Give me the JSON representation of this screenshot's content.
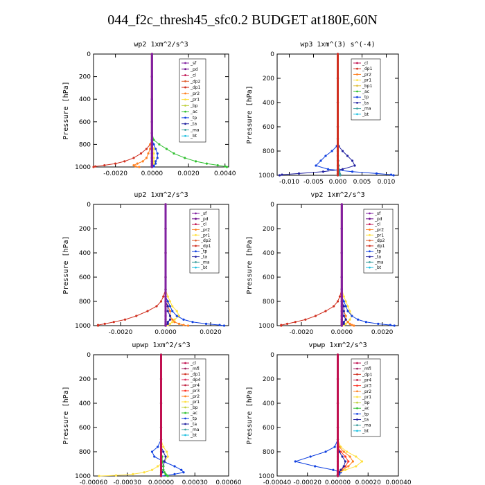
{
  "page_title": "044_f2c_thresh45_sfc0.2  BUDGET at180E,60N",
  "colors": {
    "_sf": "#8020a0",
    "_pd": "#6a0a8a",
    "_cl": "#c01050",
    "_dp2": "#e06030",
    "_dp1": "#d03020",
    "_pr2": "#ff8020",
    "_pr1": "#ffe040",
    "_bp": "#c0d040",
    "_ac": "#30c030",
    "_tp": "#1040e0",
    "_ta": "#2020a0",
    "_ma": "#40a0a0",
    "_bt": "#20c0e0",
    "_mfl": "#a02060",
    "_dp4": "#e03060",
    "_pr4": "#c02040",
    "_pr3": "#ff3020",
    "_bp1": "#e0c040"
  },
  "chart_data": [
    {
      "type": "line",
      "title": "wp2  1xm^2/s^3",
      "ylabel": "Pressure  [hPa]",
      "xlim": [
        -0.0032,
        0.0042
      ],
      "ylim": [
        1000,
        0
      ],
      "xticks": [
        -0.002,
        0.0,
        0.002,
        0.004
      ],
      "xtick_labels": [
        "-0.0020",
        "0.0000",
        "0.0020",
        "0.0040"
      ],
      "yticks": [
        0,
        200,
        400,
        600,
        800,
        1000
      ],
      "legend": [
        "_sf",
        "_pd",
        "_cl",
        "_dp2",
        "_dp1",
        "_pr2",
        "_pr1",
        "_bp",
        "_ac",
        "_tp",
        "_ta",
        "_ma",
        "_bt"
      ],
      "pressure": [
        0,
        200,
        400,
        600,
        700,
        760,
        800,
        840,
        880,
        920,
        950,
        970,
        985,
        995,
        1000
      ],
      "series": [
        {
          "name": "_dp1",
          "values": [
            0,
            0,
            0,
            0,
            0,
            0,
            -0.0001,
            -0.0003,
            -0.0006,
            -0.001,
            -0.0015,
            -0.002,
            -0.0026,
            -0.0031,
            -0.0032
          ]
        },
        {
          "name": "_ac",
          "values": [
            0,
            0,
            0,
            0,
            0,
            0.0001,
            0.0004,
            0.0008,
            0.0012,
            0.0018,
            0.0024,
            0.003,
            0.0036,
            0.004,
            0.0041
          ]
        },
        {
          "name": "_tp",
          "values": [
            0,
            0,
            0,
            0,
            0,
            0,
            0.0001,
            0.0002,
            0.0003,
            0.0003,
            0.0002,
            0.0002,
            0.0001,
            0.0001,
            0
          ]
        },
        {
          "name": "_pr1",
          "values": [
            0,
            0,
            0,
            0,
            0,
            0,
            0,
            0.0001,
            0.0001,
            0.0001,
            0.0001,
            0.0001,
            0,
            0,
            0
          ]
        },
        {
          "name": "_pr2",
          "values": [
            0,
            0,
            0,
            0,
            0,
            0,
            -0.0001,
            -0.0001,
            -0.0002,
            -0.0003,
            -0.0005,
            -0.0008,
            -0.001,
            -0.0009,
            -0.0007
          ]
        },
        {
          "name": "_cl",
          "values": [
            0,
            0,
            0,
            0,
            0,
            0,
            0,
            0,
            0,
            0,
            0,
            0,
            0,
            0,
            0
          ]
        },
        {
          "name": "_sf",
          "values": [
            0,
            0,
            0,
            0,
            0,
            0,
            0,
            0,
            0,
            0,
            0,
            0,
            0,
            0,
            0
          ]
        }
      ]
    },
    {
      "type": "line",
      "title": "wp3  1xm^(3) s^(-4)",
      "ylabel": "Pressure  [hPa]",
      "xlim": [
        -0.0125,
        0.0125
      ],
      "ylim": [
        1000,
        0
      ],
      "xticks": [
        -0.01,
        -0.005,
        0.0,
        0.005,
        0.01
      ],
      "xtick_labels": [
        "-0.010",
        "-0.005",
        "0.000",
        "0.005",
        "0.010"
      ],
      "yticks": [
        0,
        200,
        400,
        600,
        800,
        1000
      ],
      "legend": [
        "_cl",
        "_dp1",
        "_pr2",
        "_pr1",
        "_bp1",
        "_ac",
        "_tp",
        "_ta",
        "_ma",
        "_bt"
      ],
      "pressure": [
        0,
        200,
        400,
        600,
        700,
        760,
        800,
        840,
        880,
        920,
        950,
        970,
        985,
        995,
        1000
      ],
      "series": [
        {
          "name": "_ta",
          "values": [
            0,
            0,
            0,
            0,
            0,
            0.0002,
            0.001,
            0.002,
            0.003,
            0.0035,
            0.001,
            -0.003,
            -0.008,
            -0.0115,
            -0.012
          ]
        },
        {
          "name": "_tp",
          "values": [
            0,
            0,
            0,
            0,
            0,
            -0.0002,
            -0.0012,
            -0.0025,
            -0.0035,
            -0.0045,
            -0.002,
            0.003,
            0.008,
            0.011,
            0.0115
          ]
        },
        {
          "name": "_ma",
          "values": [
            0,
            0,
            0,
            0,
            0,
            0,
            0,
            0,
            0.0001,
            0.0002,
            0.0002,
            0.0003,
            0.0004,
            0.0005,
            0.0005
          ]
        },
        {
          "name": "_cl",
          "values": [
            0,
            0,
            0,
            0,
            0,
            0,
            0,
            0,
            0,
            0,
            0,
            0,
            0,
            0,
            0
          ]
        },
        {
          "name": "_dp1",
          "values": [
            0,
            0,
            0,
            0,
            0,
            0,
            0,
            0,
            0,
            0,
            0,
            0,
            0,
            0,
            0
          ]
        }
      ]
    },
    {
      "type": "line",
      "title": "up2  1xm^2/s^3",
      "ylabel": "Pressure  [hPa]",
      "xlim": [
        -0.0032,
        0.0028
      ],
      "ylim": [
        1000,
        0
      ],
      "xticks": [
        -0.002,
        0.0,
        0.002
      ],
      "xtick_labels": [
        "-0.0020",
        "0.0000",
        "0.0020"
      ],
      "yticks": [
        0,
        200,
        400,
        600,
        800,
        1000
      ],
      "legend": [
        "_sf",
        "_pd",
        "_cl",
        "_pr2",
        "_pr1",
        "_dp2",
        "_dp1",
        "_tp",
        "_ta",
        "_ma",
        "_bt"
      ],
      "pressure": [
        0,
        200,
        400,
        600,
        700,
        760,
        800,
        840,
        880,
        920,
        950,
        970,
        985,
        995,
        1000
      ],
      "series": [
        {
          "name": "_dp1",
          "values": [
            0,
            0,
            0,
            0,
            0,
            -0.0001,
            -0.0002,
            -0.0004,
            -0.0008,
            -0.0013,
            -0.0018,
            -0.0023,
            -0.0027,
            -0.003,
            -0.003
          ]
        },
        {
          "name": "_pr1",
          "values": [
            0,
            0,
            0,
            0,
            0,
            0.0001,
            0.0002,
            0.0003,
            0.0005,
            0.0006,
            0.0004,
            0.0003,
            0.0002,
            0.0001,
            0
          ]
        },
        {
          "name": "_pr2",
          "values": [
            0,
            0,
            0,
            0,
            0,
            0,
            0.0001,
            0.0001,
            0.0002,
            0.0002,
            0.0003,
            0.0004,
            0.0006,
            0.0008,
            0.001
          ]
        },
        {
          "name": "_tp",
          "values": [
            0,
            0,
            0,
            0,
            0,
            0,
            0.0001,
            0.0002,
            0.0003,
            0.0005,
            0.0008,
            0.0012,
            0.0018,
            0.0024,
            0.0026
          ]
        },
        {
          "name": "_ta",
          "values": [
            0,
            0,
            0,
            0,
            0,
            0,
            0,
            0.0001,
            0.0001,
            0.0002,
            0.0002,
            0.0001,
            0.0001,
            0,
            0
          ]
        },
        {
          "name": "_cl",
          "values": [
            0,
            0,
            0,
            0,
            0,
            0,
            0,
            0,
            0,
            0,
            0,
            0,
            0,
            0,
            0
          ]
        },
        {
          "name": "_sf",
          "values": [
            0,
            0,
            0,
            0,
            0,
            0,
            0,
            0,
            0,
            0,
            0,
            0,
            0,
            0,
            0
          ]
        }
      ]
    },
    {
      "type": "line",
      "title": "vp2  1xm^2/s^3",
      "ylabel": "Pressure  [hPa]",
      "xlim": [
        -0.0032,
        0.0028
      ],
      "ylim": [
        1000,
        0
      ],
      "xticks": [
        -0.002,
        0.0,
        0.002
      ],
      "xtick_labels": [
        "-0.0020",
        "0.0000",
        "0.0020"
      ],
      "yticks": [
        0,
        200,
        400,
        600,
        800,
        1000
      ],
      "legend": [
        "_sf",
        "_pd",
        "_cl",
        "_pr2",
        "_pr1",
        "_dp2",
        "_dp1",
        "_tp",
        "_ta",
        "_ma",
        "_bt"
      ],
      "pressure": [
        0,
        200,
        400,
        600,
        700,
        760,
        800,
        840,
        880,
        920,
        950,
        970,
        985,
        995,
        1000
      ],
      "series": [
        {
          "name": "_dp1",
          "values": [
            0,
            0,
            0,
            0,
            0,
            -0.0001,
            -0.0002,
            -0.0004,
            -0.0008,
            -0.0013,
            -0.0018,
            -0.0023,
            -0.0027,
            -0.003,
            -0.003
          ]
        },
        {
          "name": "_pr1",
          "values": [
            0,
            0,
            0,
            0,
            0,
            0.0001,
            0.0002,
            0.0003,
            0.0004,
            0.0005,
            0.0004,
            0.0003,
            0.0002,
            0.0001,
            0
          ]
        },
        {
          "name": "_pr2",
          "values": [
            0,
            0,
            0,
            0,
            0,
            0,
            0,
            0.0001,
            0.0001,
            0.0002,
            0.0002,
            0.0003,
            0.0004,
            0.0005,
            0.0006
          ]
        },
        {
          "name": "_tp",
          "values": [
            0,
            0,
            0,
            0,
            0,
            0,
            0.0001,
            0.0002,
            0.0003,
            0.0005,
            0.0008,
            0.0012,
            0.0018,
            0.0024,
            0.0026
          ]
        },
        {
          "name": "_ta",
          "values": [
            0,
            0,
            0,
            0,
            0,
            0,
            0,
            0.0001,
            0.0001,
            0.0001,
            0.0002,
            0.0001,
            0.0001,
            0,
            0
          ]
        },
        {
          "name": "_cl",
          "values": [
            0,
            0,
            0,
            0,
            0,
            0,
            0,
            0,
            0,
            0,
            0,
            0,
            0,
            0,
            0
          ]
        },
        {
          "name": "_sf",
          "values": [
            0,
            0,
            0,
            0,
            0,
            0,
            0,
            0,
            0,
            0,
            0,
            0,
            0,
            0,
            0
          ]
        }
      ]
    },
    {
      "type": "line",
      "title": "upwp  1xm^2/s^3",
      "ylabel": "Pressure  [hPa]",
      "xlim": [
        -0.0006,
        0.0006
      ],
      "ylim": [
        1000,
        0
      ],
      "xticks": [
        -0.0006,
        -0.0003,
        0.0,
        0.0003,
        0.0006
      ],
      "xtick_labels": [
        "-0.00060",
        "-0.00030",
        "0.00000",
        "0.00030",
        "0.00060"
      ],
      "yticks": [
        0,
        200,
        400,
        600,
        800,
        1000
      ],
      "legend": [
        "_cl",
        "_mfl",
        "_dp1",
        "_dp4",
        "_pr4",
        "_pr3",
        "_pr2",
        "_pr1",
        "_bp",
        "_ac",
        "_tp",
        "_ta",
        "_ma",
        "_bt"
      ],
      "pressure": [
        0,
        200,
        400,
        600,
        700,
        760,
        800,
        840,
        880,
        920,
        950,
        970,
        985,
        995,
        1000
      ],
      "series": [
        {
          "name": "_pr1",
          "values": [
            0,
            0,
            0,
            0,
            0,
            2e-05,
            5e-05,
            6e-05,
            3e-05,
            -3e-05,
            -8e-05,
            -0.00015,
            -0.00025,
            -0.0004,
            -0.00055
          ]
        },
        {
          "name": "_tp",
          "values": [
            0,
            0,
            0,
            0,
            0,
            -3e-05,
            -8e-05,
            -6e-05,
            2e-05,
            0.00012,
            0.00018,
            0.0002,
            0.00012,
            5e-05,
            0
          ]
        },
        {
          "name": "_ta",
          "values": [
            0,
            0,
            0,
            0,
            0,
            0,
            2e-05,
            4e-05,
            3e-05,
            2e-05,
            2e-05,
            1e-05,
            0,
            0,
            0
          ]
        },
        {
          "name": "_ac",
          "values": [
            0,
            0,
            0,
            0,
            0,
            0,
            0,
            1e-05,
            1e-05,
            2e-05,
            2e-05,
            3e-05,
            4e-05,
            5e-05,
            6e-05
          ]
        },
        {
          "name": "_cl",
          "values": [
            0,
            0,
            0,
            0,
            0,
            0,
            0,
            0,
            0,
            0,
            0,
            0,
            0,
            0,
            0
          ]
        }
      ]
    },
    {
      "type": "line",
      "title": "vpwp  1xm^2/s^3",
      "ylabel": "Pressure  [hPa]",
      "xlim": [
        -0.0004,
        0.0004
      ],
      "ylim": [
        1000,
        0
      ],
      "xticks": [
        -0.0004,
        -0.0002,
        0.0,
        0.0002,
        0.0004
      ],
      "xtick_labels": [
        "-0.00040",
        "-0.00020",
        "0.00000",
        "0.00020",
        "0.00040"
      ],
      "yticks": [
        0,
        200,
        400,
        600,
        800,
        1000
      ],
      "legend": [
        "_cl",
        "_mfl",
        "_dp1",
        "_pr4",
        "_pr3",
        "_pr2",
        "_pr1",
        "_bp",
        "_ac",
        "_tp",
        "_ta",
        "_ma",
        "_bt"
      ],
      "pressure": [
        0,
        200,
        400,
        600,
        700,
        760,
        800,
        840,
        880,
        920,
        950,
        970,
        985,
        995,
        1000
      ],
      "series": [
        {
          "name": "_tp",
          "values": [
            0,
            0,
            0,
            0,
            0,
            -2e-05,
            -8e-05,
            -0.00018,
            -0.00028,
            -0.00015,
            -3e-05,
            2e-05,
            1e-05,
            0,
            0
          ]
        },
        {
          "name": "_pr1",
          "values": [
            0,
            0,
            0,
            0,
            0,
            2e-05,
            6e-05,
            0.00012,
            0.00016,
            0.00012,
            5e-05,
            1e-05,
            0,
            0,
            0
          ]
        },
        {
          "name": "_pr2",
          "values": [
            0,
            0,
            0,
            0,
            0,
            1e-05,
            4e-05,
            8e-05,
            0.0001,
            7e-05,
            3e-05,
            1e-05,
            0,
            0,
            0
          ]
        },
        {
          "name": "_pr3",
          "values": [
            0,
            0,
            0,
            0,
            0,
            0,
            2e-05,
            5e-05,
            7e-05,
            5e-05,
            2e-05,
            0,
            0,
            0,
            0
          ]
        },
        {
          "name": "_ta",
          "values": [
            0,
            0,
            0,
            0,
            0,
            0,
            1e-05,
            3e-05,
            5e-05,
            4e-05,
            2e-05,
            1e-05,
            0,
            0,
            0
          ]
        },
        {
          "name": "_cl",
          "values": [
            0,
            0,
            0,
            0,
            0,
            0,
            0,
            0,
            0,
            0,
            0,
            0,
            0,
            0,
            0
          ]
        }
      ]
    }
  ]
}
